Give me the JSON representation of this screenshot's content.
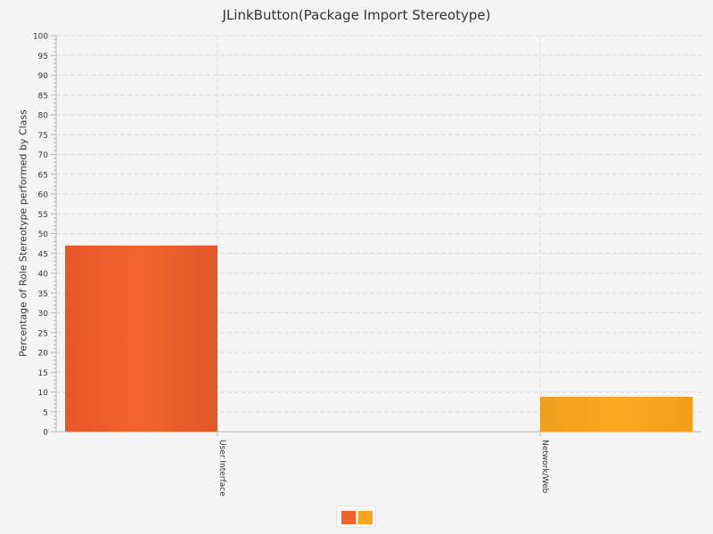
{
  "chart_data": {
    "type": "bar",
    "title": "JLinkButton(Package Import Stereotype)",
    "xlabel": "",
    "ylabel": "Percentage of Role Stereotype performed by Class",
    "categories": [
      "User Interface",
      "Network/Web"
    ],
    "series": [
      {
        "values": [
          47,
          0
        ]
      },
      {
        "values": [
          0,
          8.8
        ]
      }
    ],
    "ylim": [
      0,
      100
    ],
    "y_ticks": [
      0,
      5,
      10,
      15,
      20,
      25,
      30,
      35,
      40,
      45,
      50,
      55,
      60,
      65,
      70,
      75,
      80,
      85,
      90,
      95,
      100
    ],
    "x_tick_orientation": "vertical",
    "grid": true,
    "legend": "bottom-center",
    "colors": [
      "#f0612c",
      "#f8a31f"
    ]
  }
}
